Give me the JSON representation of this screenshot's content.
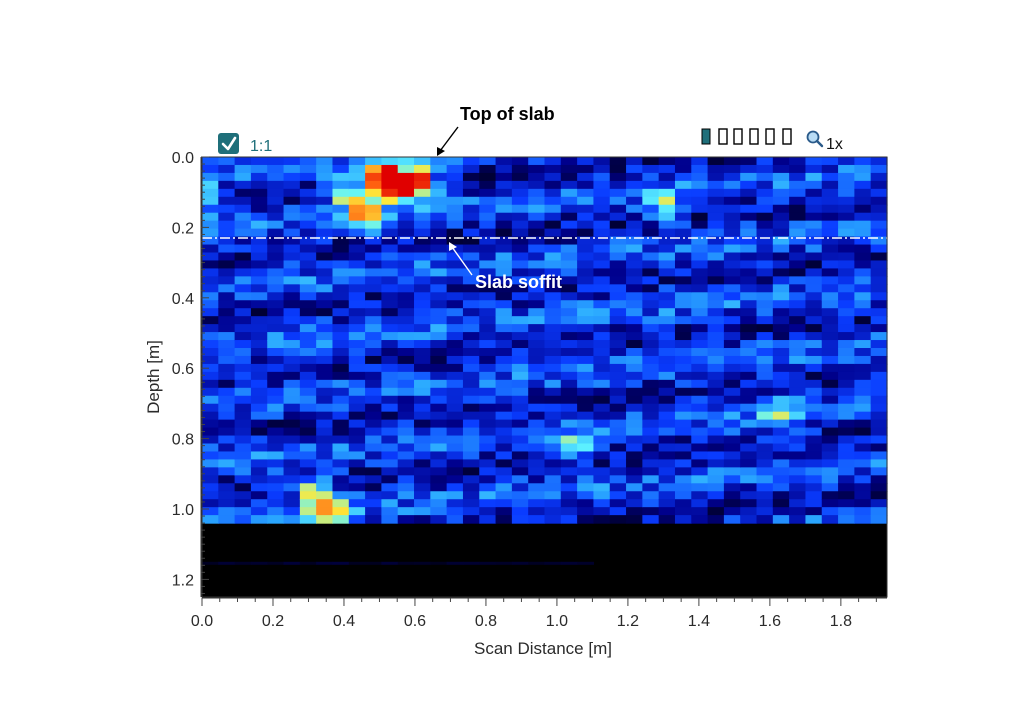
{
  "toolbar": {
    "ratio_checkbox_checked": true,
    "ratio_label": "1:1",
    "zoom_label": "1x",
    "zoom_icon": "magnifier-icon",
    "accent_color": "#1f6f7a"
  },
  "chart_data": {
    "type": "heatmap",
    "title": "",
    "xlabel": "Scan Distance [m]",
    "ylabel": "Depth [m]",
    "xlim": [
      0,
      1.93
    ],
    "ylim": [
      0,
      1.25
    ],
    "x_ticks": [
      "0.0",
      "0.2",
      "0.4",
      "0.6",
      "0.8",
      "1.0",
      "1.2",
      "1.4",
      "1.6",
      "1.8"
    ],
    "y_ticks": [
      "0.0",
      "0.2",
      "0.4",
      "0.6",
      "0.8",
      "1.0",
      "1.2"
    ],
    "data_depth_limit": 1.04,
    "colormap": [
      "#000010",
      "#00008c",
      "#0a3cff",
      "#2aa8ff",
      "#5ff5ff",
      "#ffe93a",
      "#ff6010",
      "#e00000"
    ],
    "background_color": "#000000",
    "hotspots": [
      {
        "x": 0.5,
        "y": 0.06,
        "intensity": 1.0
      },
      {
        "x": 0.55,
        "y": 0.08,
        "intensity": 1.0
      },
      {
        "x": 0.61,
        "y": 0.07,
        "intensity": 0.9
      },
      {
        "x": 0.46,
        "y": 0.16,
        "intensity": 0.65
      },
      {
        "x": 0.4,
        "y": 0.1,
        "intensity": 0.55
      },
      {
        "x": 0.36,
        "y": 1.01,
        "intensity": 0.75
      },
      {
        "x": 0.32,
        "y": 0.95,
        "intensity": 0.6
      },
      {
        "x": 1.3,
        "y": 0.14,
        "intensity": 0.45
      },
      {
        "x": 1.62,
        "y": 0.72,
        "intensity": 0.4
      },
      {
        "x": 1.05,
        "y": 0.83,
        "intensity": 0.45
      },
      {
        "x": 0.0,
        "y": 0.12,
        "intensity": 0.45
      }
    ],
    "annotations": [
      {
        "text": "Top of slab",
        "x": 0.65,
        "y": 0.0,
        "color": "#000000"
      },
      {
        "text": "Slab soffit",
        "x": 0.7,
        "y": 0.23,
        "color": "#ffffff"
      }
    ],
    "reference_line": {
      "y": 0.23,
      "style": "dash-dot",
      "color": "#ffffff"
    }
  }
}
